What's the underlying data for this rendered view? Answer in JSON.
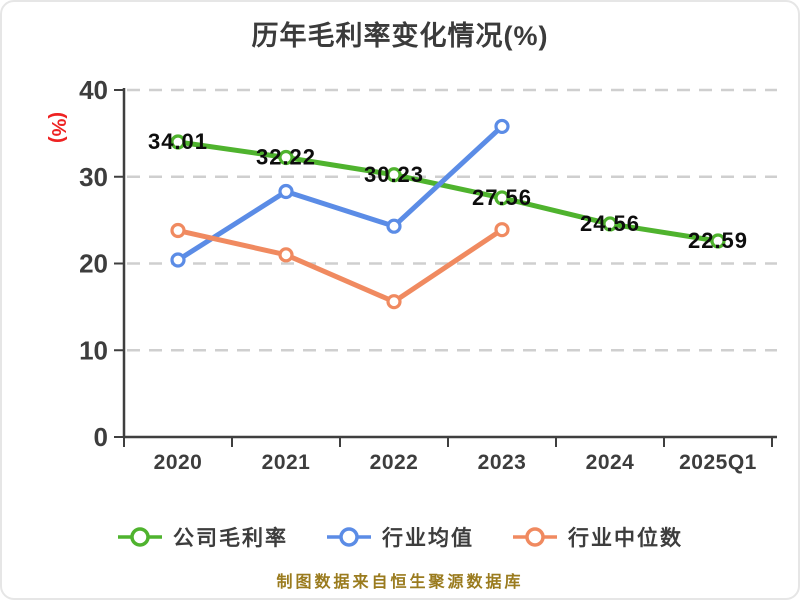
{
  "title": "历年毛利率变化情况(%)",
  "footer": {
    "source_note": "制图数据来自恒生聚源数据库"
  },
  "colors": {
    "title": "#3b3b3b",
    "axis": "#3f3f3f",
    "tick_label": "#3d3d3d",
    "grid": "#cfcfcf",
    "data_label": "#0d0d0d",
    "y_axis_name": "#ee2222",
    "source_note": "#9a7b1e",
    "company_margin": "#4fb32e",
    "industry_avg": "#5b8ce6",
    "industry_median": "#f08a60",
    "marker_fill": "#ffffff"
  },
  "chart_data": {
    "type": "line",
    "title": "历年毛利率变化情况(%)",
    "xlabel": "",
    "ylabel": "(%)",
    "categories": [
      "2020",
      "2021",
      "2022",
      "2023",
      "2024",
      "2025Q1"
    ],
    "y_ticks": [
      0,
      10,
      20,
      30,
      40
    ],
    "ylim": [
      0,
      40
    ],
    "grid": "horizontal-dashed",
    "legend_position": "bottom",
    "series": [
      {
        "name": "公司毛利率",
        "color": "#4fb32e",
        "values": [
          34.01,
          32.22,
          30.23,
          27.56,
          24.56,
          22.59
        ],
        "labels_shown": true
      },
      {
        "name": "行业均值",
        "color": "#5b8ce6",
        "values": [
          20.4,
          28.3,
          24.3,
          35.8,
          null,
          null
        ],
        "labels_shown": false
      },
      {
        "name": "行业中位数",
        "color": "#f08a60",
        "values": [
          23.8,
          21.0,
          15.6,
          23.9,
          null,
          null
        ],
        "labels_shown": false
      }
    ]
  }
}
